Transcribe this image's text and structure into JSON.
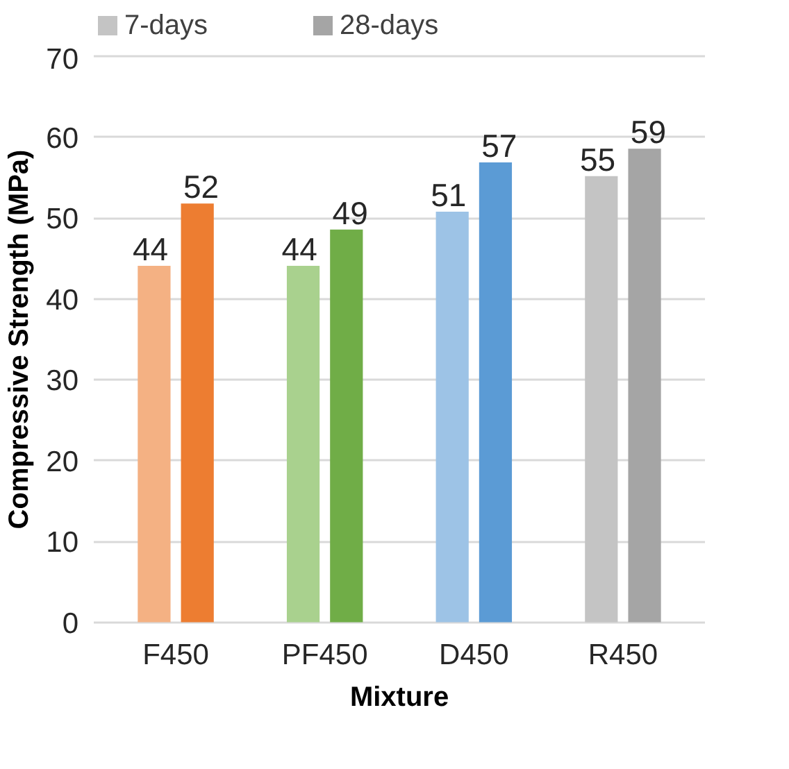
{
  "chart_data": {
    "type": "bar",
    "xlabel": "Mixture",
    "ylabel": "Compressive Strength (MPa)",
    "categories": [
      "F450",
      "PF450",
      "D450",
      "R450"
    ],
    "series": [
      {
        "name": "7-days",
        "color": "#c4c4c4",
        "colors": [
          "#f4b183",
          "#a9d18e",
          "#9dc3e6",
          "#c4c4c4"
        ],
        "values": [
          44.1,
          44.1,
          50.8,
          55.2
        ],
        "value_labels": [
          "44",
          "44",
          "51",
          "55"
        ]
      },
      {
        "name": "28-days",
        "color": "#a5a5a5",
        "colors": [
          "#ed7d31",
          "#70ad47",
          "#5b9bd5",
          "#a5a5a5"
        ],
        "values": [
          51.8,
          48.6,
          56.9,
          58.6
        ],
        "value_labels": [
          "52",
          "49",
          "57",
          "59"
        ]
      }
    ],
    "ylim": [
      0,
      70
    ],
    "yticks": [
      0,
      10,
      20,
      30,
      40,
      50,
      60,
      70
    ],
    "grid": "y",
    "legend": "top"
  }
}
